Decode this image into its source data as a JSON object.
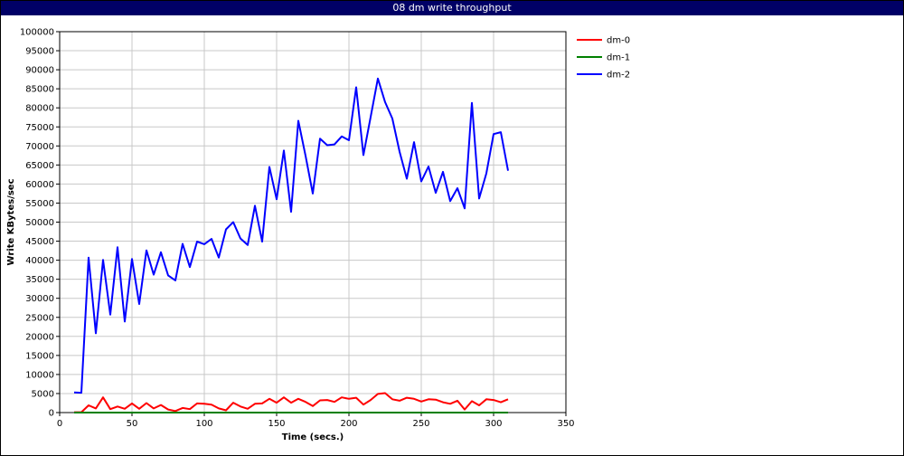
{
  "title": "08 dm write throughput",
  "chart_data": {
    "type": "line",
    "title": "08 dm write throughput",
    "xlabel": "Time (secs.)",
    "ylabel": "Write KBytes/sec",
    "xlim": [
      0,
      350
    ],
    "ylim": [
      0,
      100000
    ],
    "x_ticks": [
      "0",
      "50",
      "100",
      "150",
      "200",
      "250",
      "300",
      "350"
    ],
    "y_ticks": [
      "0",
      "5000",
      "10000",
      "15000",
      "20000",
      "25000",
      "30000",
      "35000",
      "40000",
      "45000",
      "50000",
      "55000",
      "60000",
      "65000",
      "70000",
      "75000",
      "80000",
      "85000",
      "90000",
      "95000",
      "100000"
    ],
    "grid": true,
    "legend": "top-right",
    "series": [
      {
        "name": "dm-0",
        "color": "#ff0000",
        "points": [
          [
            10,
            100
          ],
          [
            15,
            100
          ],
          [
            20,
            1900
          ],
          [
            25,
            1100
          ],
          [
            30,
            4000
          ],
          [
            35,
            900
          ],
          [
            40,
            1600
          ],
          [
            45,
            1000
          ],
          [
            50,
            2400
          ],
          [
            55,
            1000
          ],
          [
            60,
            2500
          ],
          [
            65,
            1100
          ],
          [
            70,
            2000
          ],
          [
            75,
            800
          ],
          [
            80,
            400
          ],
          [
            85,
            1200
          ],
          [
            90,
            900
          ],
          [
            95,
            2400
          ],
          [
            100,
            2300
          ],
          [
            105,
            2100
          ],
          [
            110,
            1100
          ],
          [
            115,
            600
          ],
          [
            120,
            2600
          ],
          [
            125,
            1600
          ],
          [
            130,
            1000
          ],
          [
            135,
            2300
          ],
          [
            140,
            2400
          ],
          [
            145,
            3600
          ],
          [
            150,
            2600
          ],
          [
            155,
            4000
          ],
          [
            160,
            2600
          ],
          [
            165,
            3600
          ],
          [
            170,
            2800
          ],
          [
            175,
            1700
          ],
          [
            180,
            3200
          ],
          [
            185,
            3300
          ],
          [
            190,
            2800
          ],
          [
            195,
            4000
          ],
          [
            200,
            3600
          ],
          [
            205,
            3900
          ],
          [
            210,
            2100
          ],
          [
            215,
            3300
          ],
          [
            220,
            4900
          ],
          [
            225,
            5100
          ],
          [
            230,
            3500
          ],
          [
            235,
            3100
          ],
          [
            240,
            3900
          ],
          [
            245,
            3600
          ],
          [
            250,
            2900
          ],
          [
            255,
            3500
          ],
          [
            260,
            3400
          ],
          [
            265,
            2700
          ],
          [
            270,
            2300
          ],
          [
            275,
            3100
          ],
          [
            280,
            800
          ],
          [
            285,
            3000
          ],
          [
            290,
            1900
          ],
          [
            295,
            3500
          ],
          [
            300,
            3300
          ],
          [
            305,
            2700
          ],
          [
            310,
            3500
          ]
        ]
      },
      {
        "name": "dm-1",
        "color": "#008000",
        "points": [
          [
            10,
            0
          ],
          [
            310,
            0
          ]
        ]
      },
      {
        "name": "dm-2",
        "color": "#0000ff",
        "points": [
          [
            10,
            5300
          ],
          [
            15,
            5200
          ],
          [
            20,
            40700
          ],
          [
            25,
            20800
          ],
          [
            30,
            40100
          ],
          [
            35,
            25700
          ],
          [
            40,
            43400
          ],
          [
            45,
            23900
          ],
          [
            50,
            40300
          ],
          [
            55,
            28500
          ],
          [
            60,
            42600
          ],
          [
            65,
            36200
          ],
          [
            70,
            42100
          ],
          [
            75,
            36000
          ],
          [
            80,
            34700
          ],
          [
            85,
            44300
          ],
          [
            90,
            38200
          ],
          [
            95,
            44900
          ],
          [
            100,
            44200
          ],
          [
            105,
            45600
          ],
          [
            110,
            40700
          ],
          [
            115,
            48100
          ],
          [
            120,
            50000
          ],
          [
            125,
            45700
          ],
          [
            130,
            44000
          ],
          [
            135,
            54300
          ],
          [
            140,
            44900
          ],
          [
            145,
            64500
          ],
          [
            150,
            56000
          ],
          [
            155,
            68800
          ],
          [
            160,
            52700
          ],
          [
            165,
            76600
          ],
          [
            170,
            67400
          ],
          [
            175,
            57500
          ],
          [
            180,
            71900
          ],
          [
            185,
            70200
          ],
          [
            190,
            70400
          ],
          [
            195,
            72500
          ],
          [
            200,
            71500
          ],
          [
            205,
            85400
          ],
          [
            210,
            67600
          ],
          [
            215,
            77600
          ],
          [
            220,
            87700
          ],
          [
            225,
            81500
          ],
          [
            230,
            77200
          ],
          [
            235,
            68500
          ],
          [
            240,
            61400
          ],
          [
            245,
            71000
          ],
          [
            250,
            60700
          ],
          [
            255,
            64600
          ],
          [
            260,
            57700
          ],
          [
            265,
            63200
          ],
          [
            270,
            55500
          ],
          [
            275,
            58900
          ],
          [
            280,
            53600
          ],
          [
            285,
            81300
          ],
          [
            290,
            56200
          ],
          [
            295,
            62800
          ],
          [
            300,
            73100
          ],
          [
            305,
            73600
          ],
          [
            310,
            63500
          ]
        ]
      }
    ]
  }
}
